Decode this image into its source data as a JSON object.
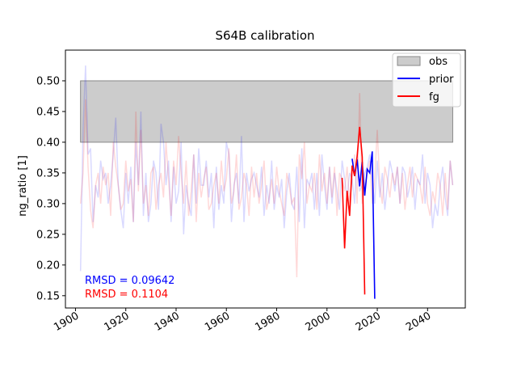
{
  "chart_data": {
    "type": "line",
    "title": "S64B calibration",
    "ylabel": "ng_ratio [1]",
    "xlabel": "",
    "xlim": [
      1896,
      2055
    ],
    "ylim": [
      0.13,
      0.55
    ],
    "x_ticks": [
      1900,
      1920,
      1940,
      1960,
      1980,
      2000,
      2020,
      2040
    ],
    "y_ticks": [
      0.15,
      0.2,
      0.25,
      0.3,
      0.35,
      0.4,
      0.45,
      0.5
    ],
    "y_tick_labels": [
      "0.15",
      "0.20",
      "0.25",
      "0.30",
      "0.35",
      "0.40",
      "0.45",
      "0.50"
    ],
    "grid": false,
    "legend_position": "top-right",
    "obs_band": {
      "name": "obs",
      "x": [
        1902,
        2050
      ],
      "y": [
        0.4,
        0.5
      ],
      "color": "#cccccc"
    },
    "series": [
      {
        "name": "prior",
        "color": "#0000ff",
        "x": [
          2010,
          2011,
          2012,
          2013,
          2014,
          2015,
          2016,
          2017,
          2018,
          2019
        ],
        "values": [
          0.373,
          0.345,
          0.372,
          0.328,
          0.368,
          0.313,
          0.356,
          0.35,
          0.385,
          0.145
        ]
      },
      {
        "name": "fg",
        "color": "#ff0000",
        "x": [
          2006,
          2007,
          2008,
          2009,
          2010,
          2011,
          2012,
          2013,
          2014,
          2015
        ],
        "values": [
          0.342,
          0.227,
          0.321,
          0.28,
          0.362,
          0.345,
          0.377,
          0.425,
          0.376,
          0.152
        ]
      }
    ],
    "background_series": [
      {
        "name": "prior",
        "color": "#0000ff",
        "opacity": 0.15,
        "x": [
          1902,
          1903,
          1904,
          1905,
          1906,
          1907,
          1908,
          1909,
          1910,
          1911,
          1912,
          1913,
          1914,
          1915,
          1916,
          1917,
          1918,
          1919,
          1920,
          1921,
          1922,
          1923,
          1924,
          1925,
          1926,
          1927,
          1928,
          1929,
          1930,
          1931,
          1932,
          1933,
          1934,
          1935,
          1936,
          1937,
          1938,
          1939,
          1940,
          1941,
          1942,
          1943,
          1944,
          1945,
          1946,
          1947,
          1948,
          1949,
          1950,
          1951,
          1952,
          1953,
          1954,
          1955,
          1956,
          1957,
          1958,
          1959,
          1960,
          1961,
          1962,
          1963,
          1964,
          1965,
          1966,
          1967,
          1968,
          1969,
          1970,
          1971,
          1972,
          1973,
          1974,
          1975,
          1976,
          1977,
          1978,
          1979,
          1980,
          1981,
          1982,
          1983,
          1984,
          1985,
          1986,
          1987,
          1988,
          1989,
          1990,
          1991,
          1992,
          1993,
          1994,
          1995,
          1996,
          1997,
          1998,
          1999,
          2000,
          2001,
          2002,
          2003,
          2004,
          2005,
          2006,
          2007,
          2008,
          2009,
          2010,
          2011,
          2012,
          2013,
          2014,
          2015,
          2016,
          2017,
          2018,
          2019,
          2020,
          2021,
          2022,
          2023,
          2024,
          2025,
          2026,
          2027,
          2028,
          2029,
          2030,
          2031,
          2032,
          2033,
          2034,
          2035,
          2036,
          2037,
          2038,
          2039,
          2040,
          2041,
          2042,
          2043,
          2044,
          2045,
          2046,
          2047,
          2048,
          2049,
          2050
        ],
        "values": [
          0.19,
          0.42,
          0.525,
          0.38,
          0.39,
          0.27,
          0.33,
          0.31,
          0.37,
          0.34,
          0.35,
          0.3,
          0.33,
          0.38,
          0.44,
          0.33,
          0.29,
          0.26,
          0.35,
          0.3,
          0.36,
          0.27,
          0.4,
          0.33,
          0.45,
          0.28,
          0.35,
          0.27,
          0.3,
          0.37,
          0.35,
          0.29,
          0.43,
          0.4,
          0.33,
          0.37,
          0.27,
          0.36,
          0.3,
          0.32,
          0.4,
          0.25,
          0.33,
          0.3,
          0.28,
          0.38,
          0.3,
          0.39,
          0.33,
          0.33,
          0.37,
          0.31,
          0.35,
          0.26,
          0.36,
          0.29,
          0.33,
          0.3,
          0.4,
          0.38,
          0.27,
          0.33,
          0.35,
          0.3,
          0.41,
          0.27,
          0.35,
          0.32,
          0.34,
          0.35,
          0.33,
          0.31,
          0.36,
          0.28,
          0.33,
          0.3,
          0.37,
          0.29,
          0.33,
          0.31,
          0.34,
          0.26,
          0.32,
          0.35,
          0.3,
          0.29,
          0.36,
          0.27,
          0.39,
          0.26,
          0.34,
          0.33,
          0.35,
          0.29,
          0.35,
          0.28,
          0.38,
          0.33,
          0.29,
          0.36,
          0.3,
          0.35,
          0.32,
          0.29,
          0.37,
          0.34,
          0.31,
          0.35,
          0.34,
          0.3,
          0.38,
          0.32,
          0.33,
          0.35,
          0.36,
          0.38,
          0.34,
          0.3,
          0.37,
          0.31,
          0.35,
          0.29,
          0.33,
          0.37,
          0.35,
          0.32,
          0.36,
          0.3,
          0.36,
          0.35,
          0.31,
          0.33,
          0.36,
          0.29,
          0.34,
          0.33,
          0.38,
          0.3,
          0.35,
          0.33,
          0.26,
          0.3,
          0.28,
          0.33,
          0.36,
          0.31,
          0.28,
          0.37,
          0.33
        ],
        "legend": false
      },
      {
        "name": "fg",
        "color": "#ff0000",
        "opacity": 0.15,
        "x": [
          1902,
          1903,
          1904,
          1905,
          1906,
          1907,
          1908,
          1909,
          1910,
          1911,
          1912,
          1913,
          1914,
          1915,
          1916,
          1917,
          1918,
          1919,
          1920,
          1921,
          1922,
          1923,
          1924,
          1925,
          1926,
          1927,
          1928,
          1929,
          1930,
          1931,
          1932,
          1933,
          1934,
          1935,
          1936,
          1937,
          1938,
          1939,
          1940,
          1941,
          1942,
          1943,
          1944,
          1945,
          1946,
          1947,
          1948,
          1949,
          1950,
          1951,
          1952,
          1953,
          1954,
          1955,
          1956,
          1957,
          1958,
          1959,
          1960,
          1961,
          1962,
          1963,
          1964,
          1965,
          1966,
          1967,
          1968,
          1969,
          1970,
          1971,
          1972,
          1973,
          1974,
          1975,
          1976,
          1977,
          1978,
          1979,
          1980,
          1981,
          1982,
          1983,
          1984,
          1985,
          1986,
          1987,
          1988,
          1989,
          1990,
          1991,
          1992,
          1993,
          1994,
          1995,
          1996,
          1997,
          1998,
          1999,
          2000,
          2001,
          2002,
          2003,
          2004,
          2005,
          2006,
          2007,
          2008,
          2009,
          2010,
          2011,
          2012,
          2013,
          2014,
          2015,
          2016,
          2017,
          2018,
          2019,
          2020,
          2021,
          2022,
          2023,
          2024,
          2025,
          2026,
          2027,
          2028,
          2029,
          2030,
          2031,
          2032,
          2033,
          2034,
          2035,
          2036,
          2037,
          2038,
          2039,
          2040,
          2041,
          2042,
          2043,
          2044,
          2045,
          2046,
          2047,
          2048,
          2049,
          2050
        ],
        "values": [
          0.3,
          0.35,
          0.47,
          0.36,
          0.29,
          0.26,
          0.33,
          0.35,
          0.3,
          0.36,
          0.33,
          0.35,
          0.28,
          0.4,
          0.36,
          0.33,
          0.29,
          0.3,
          0.37,
          0.32,
          0.34,
          0.27,
          0.45,
          0.32,
          0.42,
          0.3,
          0.33,
          0.28,
          0.35,
          0.36,
          0.29,
          0.33,
          0.35,
          0.31,
          0.4,
          0.34,
          0.28,
          0.37,
          0.33,
          0.41,
          0.35,
          0.3,
          0.37,
          0.28,
          0.32,
          0.38,
          0.27,
          0.35,
          0.31,
          0.34,
          0.36,
          0.29,
          0.3,
          0.33,
          0.35,
          0.3,
          0.37,
          0.32,
          0.34,
          0.39,
          0.3,
          0.32,
          0.38,
          0.29,
          0.31,
          0.35,
          0.33,
          0.28,
          0.36,
          0.31,
          0.35,
          0.3,
          0.33,
          0.37,
          0.29,
          0.31,
          0.34,
          0.3,
          0.36,
          0.32,
          0.3,
          0.28,
          0.35,
          0.33,
          0.3,
          0.31,
          0.18,
          0.38,
          0.34,
          0.4,
          0.3,
          0.33,
          0.32,
          0.35,
          0.29,
          0.38,
          0.32,
          0.35,
          0.3,
          0.36,
          0.31,
          0.36,
          0.28,
          0.35,
          0.34,
          0.32,
          0.36,
          0.3,
          0.34,
          0.38,
          0.3,
          0.48,
          0.3,
          0.33,
          0.35,
          0.37,
          0.3,
          0.34,
          0.42,
          0.33,
          0.3,
          0.36,
          0.34,
          0.31,
          0.35,
          0.33,
          0.36,
          0.3,
          0.35,
          0.29,
          0.33,
          0.36,
          0.31,
          0.35,
          0.34,
          0.33,
          0.3,
          0.36,
          0.3,
          0.28,
          0.32,
          0.3,
          0.35,
          0.33,
          0.28,
          0.35,
          0.29,
          0.37,
          0.33
        ],
        "legend": false
      }
    ],
    "annotations": [
      {
        "text": "RMSD = 0.09642",
        "color": "#0000ff"
      },
      {
        "text": "RMSD = 0.1104",
        "color": "#ff0000"
      }
    ],
    "legend": [
      {
        "label": "obs",
        "kind": "patch",
        "color": "#cccccc"
      },
      {
        "label": "prior",
        "kind": "line",
        "color": "#0000ff"
      },
      {
        "label": "fg",
        "kind": "line",
        "color": "#ff0000"
      }
    ]
  }
}
